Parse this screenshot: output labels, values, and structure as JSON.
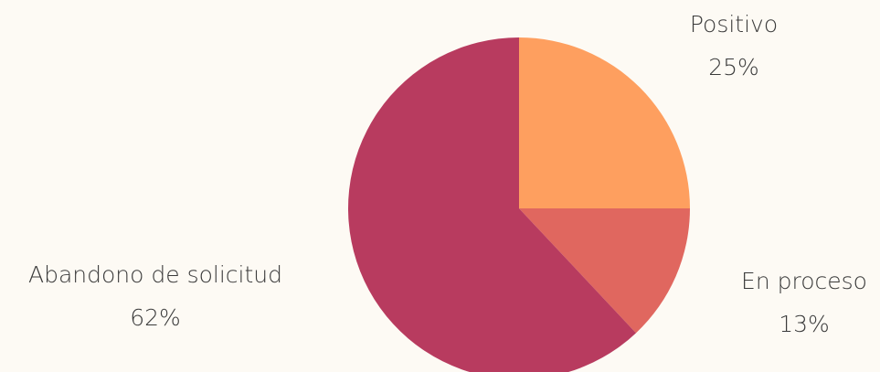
{
  "chart_data": {
    "type": "pie",
    "categories": [
      "Positivo",
      "En proceso",
      "Abandono de solicitud"
    ],
    "values": [
      25,
      13,
      62
    ],
    "value_labels": [
      "25%",
      "13%",
      "62%"
    ],
    "colors": [
      "#fe9f5f",
      "#e0675f",
      "#b83b5f"
    ]
  }
}
